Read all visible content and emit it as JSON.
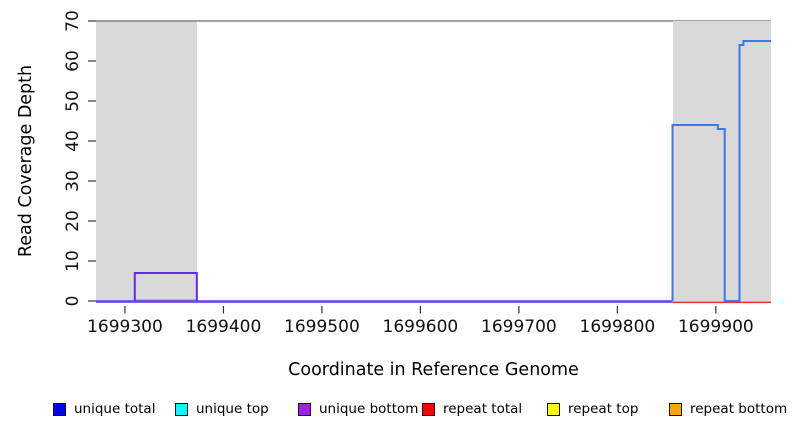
{
  "chart_data": {
    "type": "line",
    "subtype": "step-coverage-plot",
    "title": "",
    "xlabel": "Coordinate in Reference Genome",
    "ylabel": "Read Coverage Depth",
    "xlim": [
      1699270.6,
      1699956
    ],
    "ylim": [
      0,
      70
    ],
    "x_ticks": [
      1699300,
      1699400,
      1699500,
      1699600,
      1699700,
      1699800,
      1699900
    ],
    "y_ticks": [
      0,
      10,
      20,
      30,
      40,
      50,
      60,
      70
    ],
    "grid": "off",
    "legend_position": "bottom",
    "top_border": {
      "y": 70,
      "color": "#6b6b6b"
    },
    "shaded_regions": [
      {
        "x_start": 1699270.6,
        "x_end": 1699373,
        "color": "#d9d9d9",
        "meaning": "repeat region"
      },
      {
        "x_start": 1699856,
        "x_end": 1699956,
        "color": "#d9d9d9",
        "meaning": "repeat region"
      }
    ],
    "series": [
      {
        "name": "unique-top-overlap-segment",
        "color": "#7ccc7c",
        "width": 1.4,
        "dy": -1,
        "points": [
          [
            1699311,
            0
          ],
          [
            1699372,
            0
          ]
        ]
      },
      {
        "name": "unique-bottom-baseline",
        "color": "#8855ee",
        "width": 1.4,
        "dy": 1.3,
        "points": [
          [
            1699270.6,
            0
          ],
          [
            1699856,
            0
          ]
        ]
      },
      {
        "name": "unique-total-baseline",
        "color": "#4646ef",
        "width": 1.4,
        "dy": 0,
        "points": [
          [
            1699270.6,
            0
          ],
          [
            1699856,
            0
          ]
        ]
      },
      {
        "name": "repeat-total-baseline",
        "color": "#e43434",
        "width": 1.5,
        "dy": 1.4,
        "points": [
          [
            1699856,
            0
          ],
          [
            1699956,
            0
          ]
        ]
      },
      {
        "name": "unique-bottom-step",
        "color": "#5b2ee9",
        "width": 2,
        "dy": 0,
        "points": [
          [
            1699310,
            0
          ],
          [
            1699310,
            7
          ],
          [
            1699373,
            7
          ],
          [
            1699373,
            0
          ]
        ]
      },
      {
        "name": "unique-total-steps",
        "color": "#3b76ee",
        "width": 2,
        "dy": 0,
        "points": [
          [
            1699856,
            0
          ],
          [
            1699856,
            44
          ],
          [
            1699902,
            44
          ],
          [
            1699902,
            43
          ],
          [
            1699909,
            43
          ],
          [
            1699909,
            0
          ],
          [
            1699924,
            0
          ],
          [
            1699924,
            64
          ],
          [
            1699928,
            64
          ],
          [
            1699928,
            65
          ],
          [
            1699956,
            65
          ]
        ]
      }
    ],
    "legend": [
      {
        "label": "unique total",
        "color": "#0000ff"
      },
      {
        "label": "unique top",
        "color": "#00ffff"
      },
      {
        "label": "unique bottom",
        "color": "#a020f0"
      },
      {
        "label": "repeat total",
        "color": "#ff0000"
      },
      {
        "label": "repeat top",
        "color": "#ffff00"
      },
      {
        "label": "repeat bottom",
        "color": "#ffa500"
      }
    ]
  }
}
